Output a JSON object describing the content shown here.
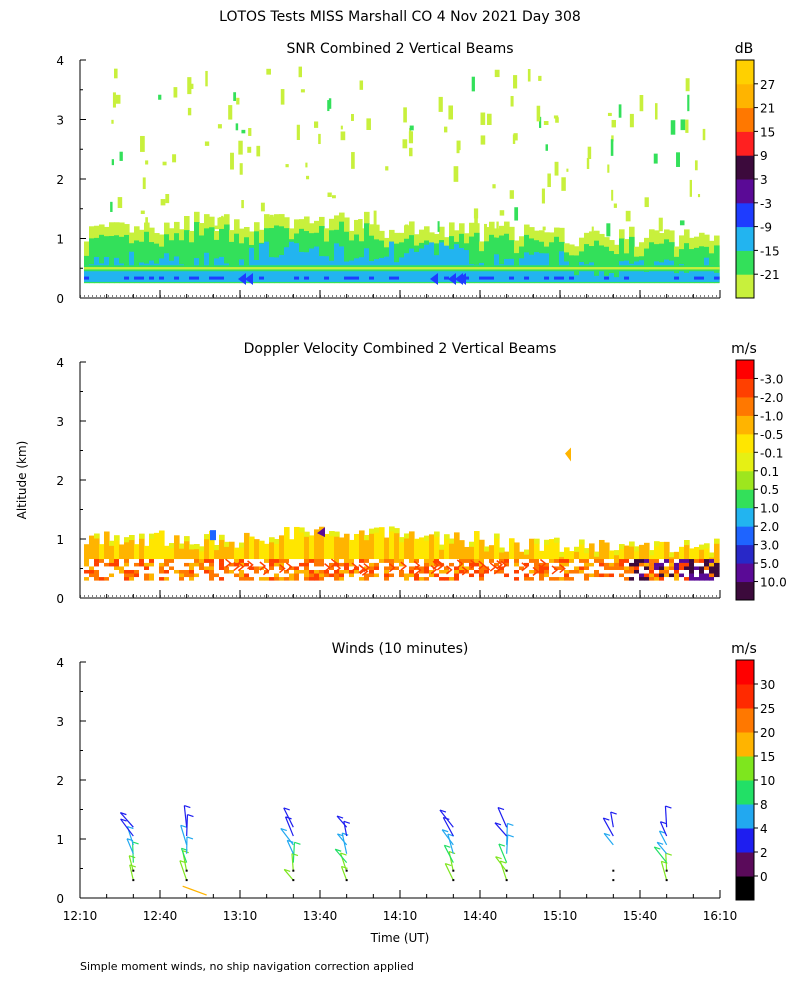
{
  "page": {
    "title": "LOTOS Tests MISS Marshall CO   4 Nov 2021 Day 308",
    "ylabel": "Altitude (km)",
    "xlabel": "Time (UT)",
    "footnote": "Simple moment winds, no ship navigation correction applied"
  },
  "chart_data": [
    {
      "type": "heatmap",
      "title": "SNR Combined 2 Vertical Beams",
      "colorbar_unit": "dB",
      "colorbar_labels": [
        "-21",
        "-15",
        "-9",
        "-3",
        "3",
        "9",
        "15",
        "21",
        "27"
      ],
      "colorbar_colors": [
        "#c8f03c",
        "#33e05a",
        "#22b4f0",
        "#1e3cff",
        "#5a0a96",
        "#3c0a3c",
        "#ff2020",
        "#ff7800",
        "#ffb400",
        "#ffd000"
      ],
      "x_ticks": [
        "12:10",
        "12:40",
        "13:10",
        "13:40",
        "14:10",
        "14:40",
        "15:10",
        "15:40",
        "16:10"
      ],
      "y_ticks": [
        "0",
        "1",
        "2",
        "3",
        "4"
      ],
      "xlim_hours_ut": [
        12.1667,
        16.1667
      ],
      "ylim": [
        0,
        4
      ],
      "description_layers": [
        {
          "alt_range_km": [
            0.25,
            0.7
          ],
          "value_db": -9
        },
        {
          "alt_range_km": [
            0.7,
            1.0
          ],
          "value_db": -15
        },
        {
          "alt_range_km": [
            1.0,
            1.3
          ],
          "value_db": -21
        }
      ]
    },
    {
      "type": "heatmap",
      "title": "Doppler Velocity Combined 2 Vertical Beams",
      "colorbar_unit": "m/s",
      "colorbar_labels": [
        "10.0",
        "5.0",
        "3.0",
        "2.0",
        "1.0",
        "0.5",
        "0.1",
        "-0.1",
        "-0.5",
        "-1.0",
        "-2.0",
        "-3.0"
      ],
      "colorbar_colors": [
        "#3c0a3c",
        "#5a0a96",
        "#2828c8",
        "#1e64ff",
        "#22b4f0",
        "#33e05a",
        "#9ee61e",
        "#e6f014",
        "#ffe600",
        "#ffb400",
        "#ff7800",
        "#ff4000",
        "#ff0000"
      ],
      "x_ticks": [
        "12:10",
        "12:40",
        "13:10",
        "13:40",
        "14:10",
        "14:40",
        "15:10",
        "15:40",
        "16:10"
      ],
      "y_ticks": [
        "0",
        "1",
        "2",
        "3",
        "4"
      ],
      "xlim_hours_ut": [
        12.1667,
        16.1667
      ],
      "ylim": [
        0,
        4
      ]
    },
    {
      "type": "scatter",
      "title": "Winds (10 minutes)",
      "colorbar_unit": "m/s",
      "colorbar_labels": [
        "0",
        "2",
        "4",
        "8",
        "10",
        "15",
        "20",
        "25",
        "30"
      ],
      "colorbar_colors": [
        "#000000",
        "#5a0a5a",
        "#1e1ef0",
        "#22a8f0",
        "#22e066",
        "#7ee61e",
        "#ffb400",
        "#ff7800",
        "#ff2a00",
        "#ff0000"
      ],
      "x_ticks": [
        "12:10",
        "12:40",
        "13:10",
        "13:40",
        "14:10",
        "14:40",
        "15:10",
        "15:40",
        "16:10"
      ],
      "y_ticks": [
        "0",
        "1",
        "2",
        "3",
        "4"
      ],
      "xlim_hours_ut": [
        12.1667,
        16.1667
      ],
      "ylim": [
        0,
        4
      ],
      "profile_times_ut": [
        12.5,
        12.8333,
        13.5,
        13.8333,
        14.5,
        14.8333,
        15.5,
        15.8333
      ]
    }
  ]
}
